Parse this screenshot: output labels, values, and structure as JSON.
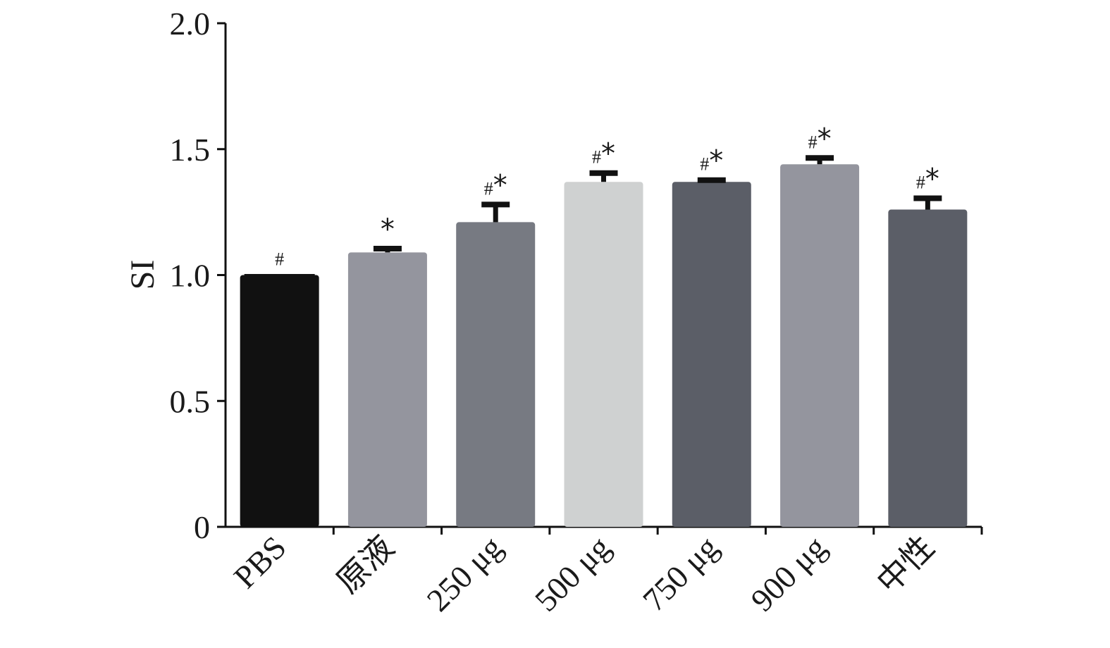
{
  "chart_data": {
    "type": "bar",
    "ylabel": "SI",
    "ylim": [
      0,
      2.0
    ],
    "yticks": [
      "0",
      "0.5",
      "1.0",
      "1.5",
      "2.0"
    ],
    "ytick_values": [
      0,
      0.5,
      1.0,
      1.5,
      2.0
    ],
    "categories": [
      "PBS",
      "原液",
      "250 μg",
      "500 μg",
      "750 μg",
      "900 μg",
      "中性"
    ],
    "values": [
      1.0,
      1.09,
      1.21,
      1.37,
      1.37,
      1.44,
      1.26
    ],
    "errors": [
      0.0,
      0.015,
      0.07,
      0.035,
      0.007,
      0.025,
      0.045
    ],
    "annotations": [
      "#",
      "*",
      "#*",
      "#*",
      "#*",
      "#*",
      "#*"
    ],
    "bar_colors": [
      "#111111",
      "#94959e",
      "#777a82",
      "#cfd1d1",
      "#5b5e67",
      "#94959e",
      "#5b5e67"
    ]
  }
}
